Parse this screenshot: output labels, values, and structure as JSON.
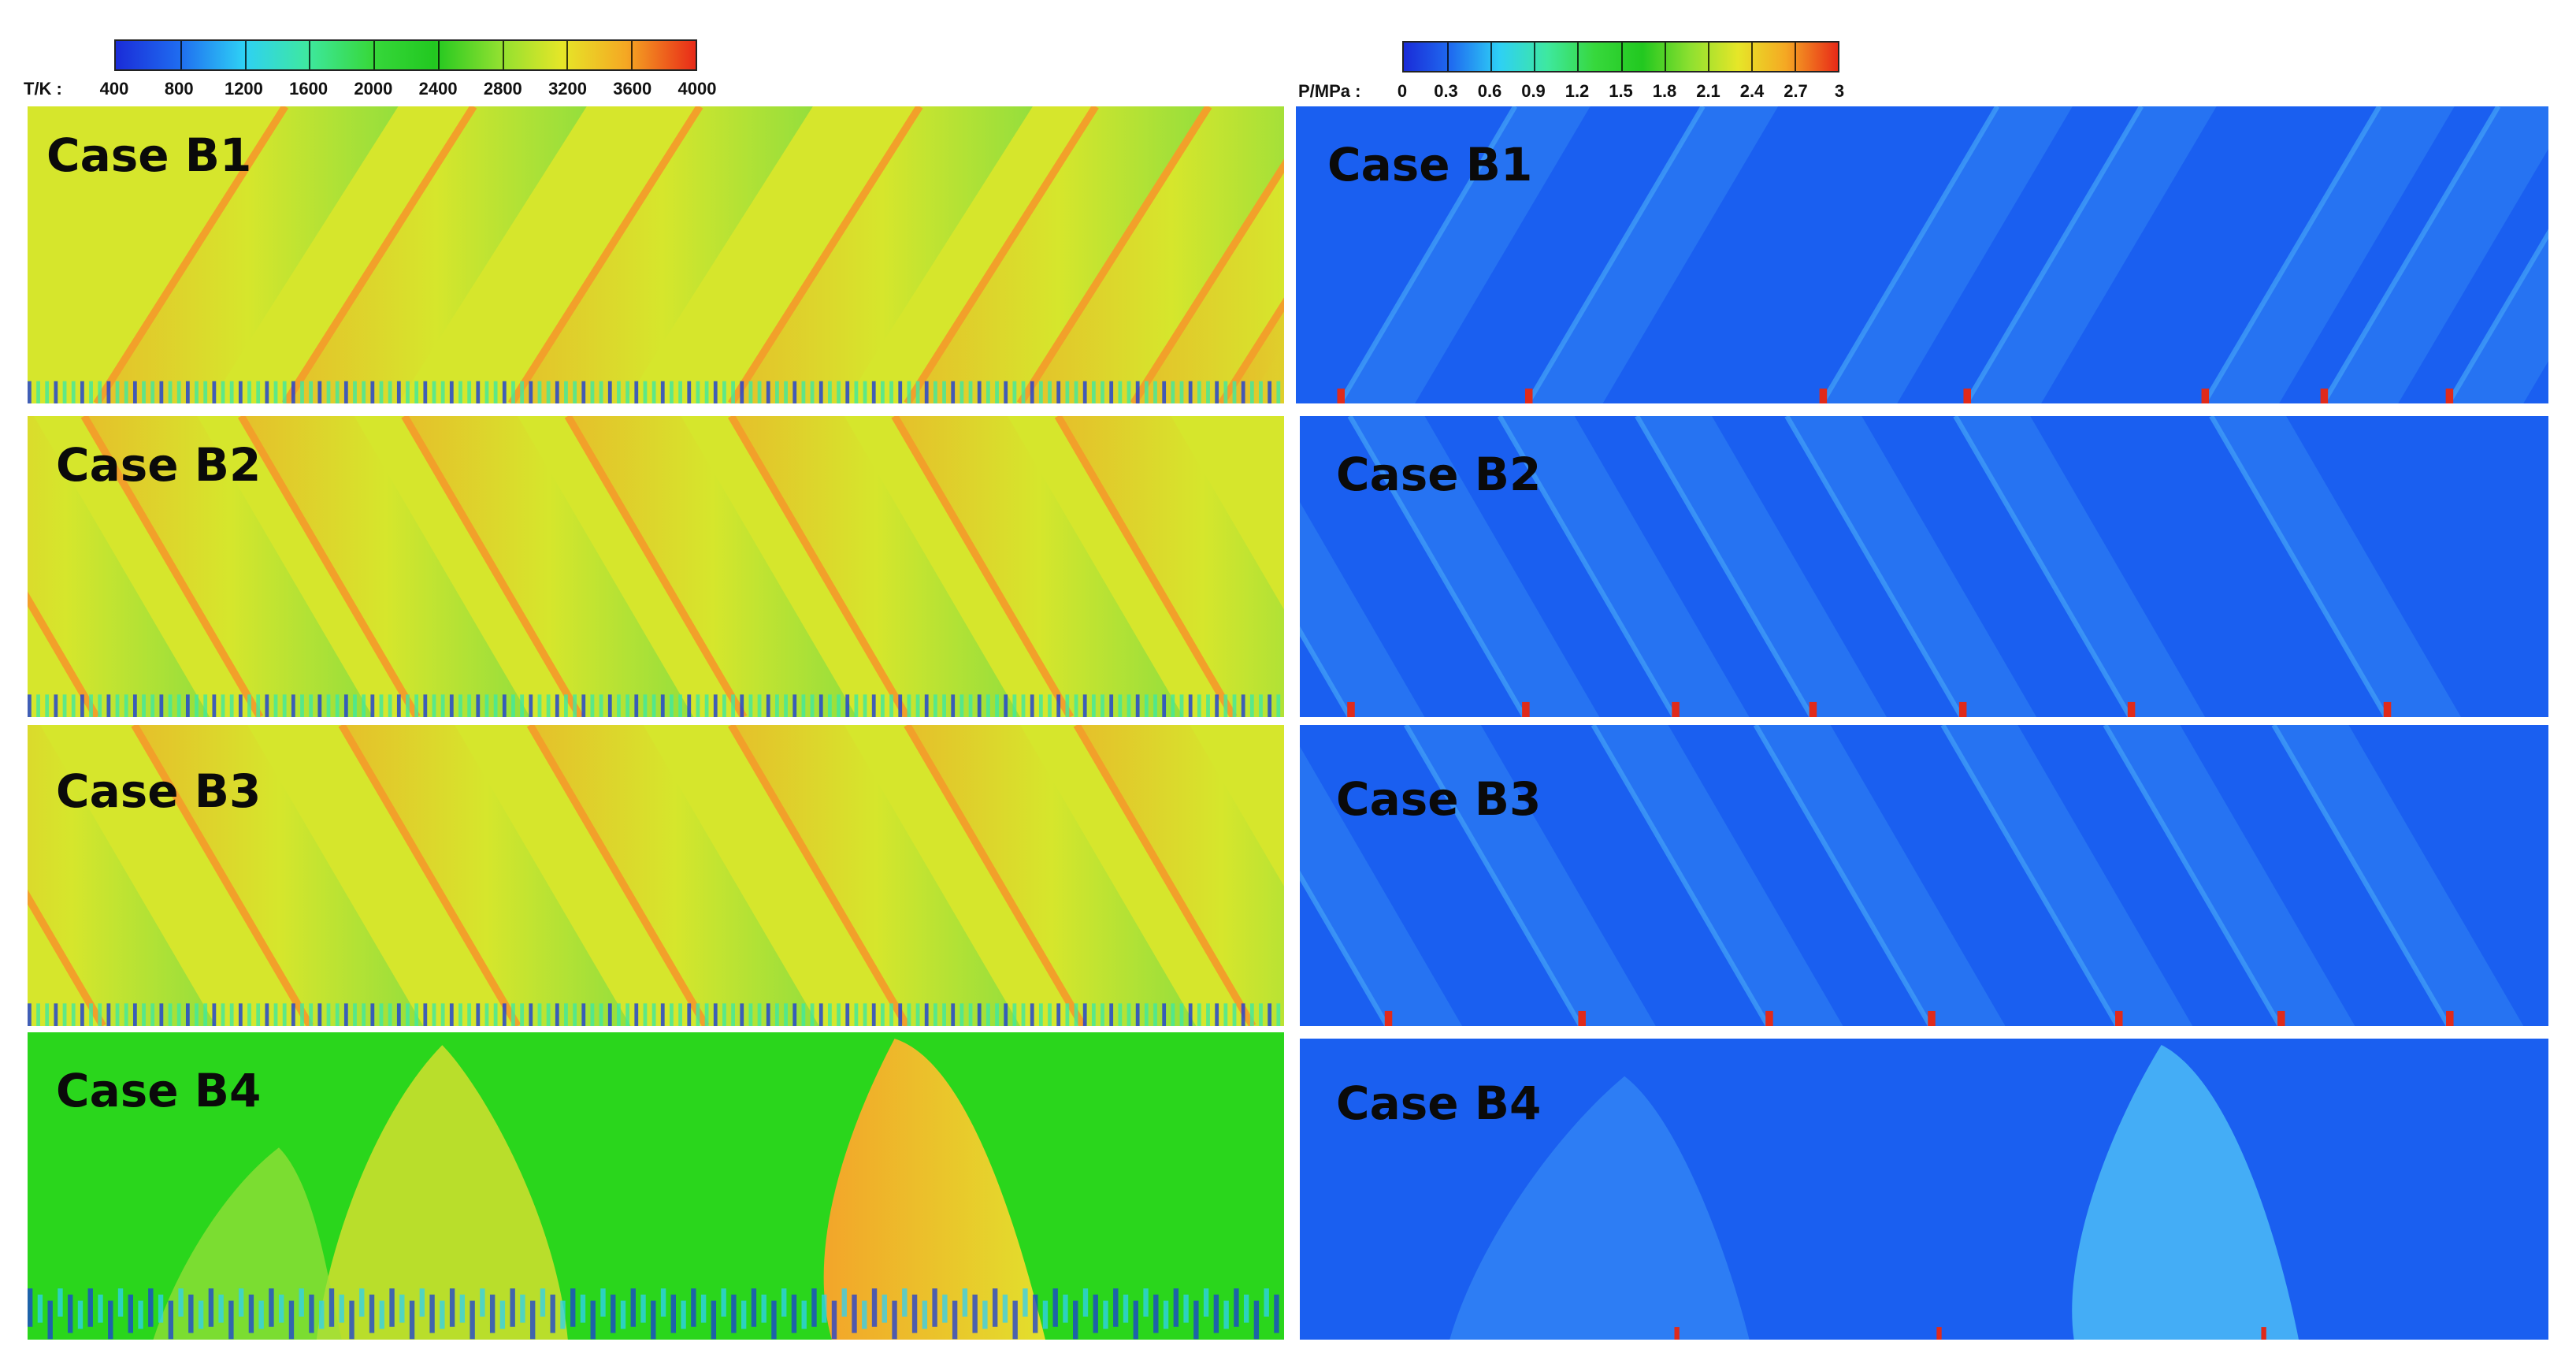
{
  "temperature_colorbar": {
    "label": "T/K :",
    "ticks": [
      "400",
      "800",
      "1200",
      "1600",
      "2000",
      "2400",
      "2800",
      "3200",
      "3600",
      "4000"
    ]
  },
  "pressure_colorbar": {
    "label": "P/MPa :",
    "ticks": [
      "0",
      "0.3",
      "0.6",
      "0.9",
      "1.2",
      "1.5",
      "1.8",
      "2.1",
      "2.4",
      "2.7",
      "3"
    ]
  },
  "panels": {
    "temperature": [
      {
        "label": "Case B1"
      },
      {
        "label": "Case B2"
      },
      {
        "label": "Case B3"
      },
      {
        "label": "Case B4"
      }
    ],
    "pressure": [
      {
        "label": "Case B1"
      },
      {
        "label": "Case B2"
      },
      {
        "label": "Case B3"
      },
      {
        "label": "Case B4"
      }
    ]
  },
  "colors": {
    "temperature_field": "#d6e62c",
    "temperature_hot": "#f2a02a",
    "temperature_cool": "#5fd84a",
    "pressure_field": "#1a5ff0",
    "pressure_wave": "#3f9cf7",
    "pressure_peak": "#e02a1a"
  }
}
